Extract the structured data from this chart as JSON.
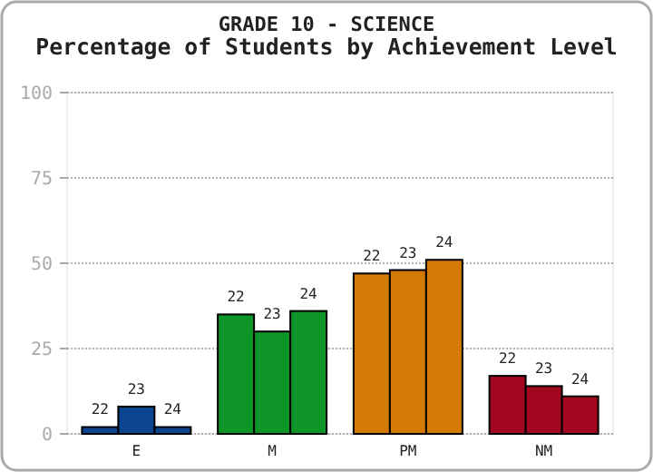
{
  "chart_data": {
    "type": "bar",
    "title": "GRADE 10 - SCIENCE",
    "subtitle": "Percentage of Students by Achievement Level",
    "categories": [
      "E",
      "M",
      "PM",
      "NM"
    ],
    "series": [
      {
        "name": "22",
        "colors": [
          "#0b4592",
          "#0d9627",
          "#d57905",
          "#a3061f"
        ],
        "values": [
          2,
          35,
          47,
          17
        ]
      },
      {
        "name": "23",
        "colors": [
          "#0b4592",
          "#0d9627",
          "#d57905",
          "#a3061f"
        ],
        "values": [
          8,
          30,
          48,
          14
        ]
      },
      {
        "name": "24",
        "colors": [
          "#0b4592",
          "#0d9627",
          "#d57905",
          "#a3061f"
        ],
        "values": [
          2,
          36,
          51,
          11
        ]
      }
    ],
    "ylim": [
      0,
      100
    ],
    "yticks": [
      0,
      25,
      50,
      75,
      100
    ],
    "grid": "y"
  }
}
